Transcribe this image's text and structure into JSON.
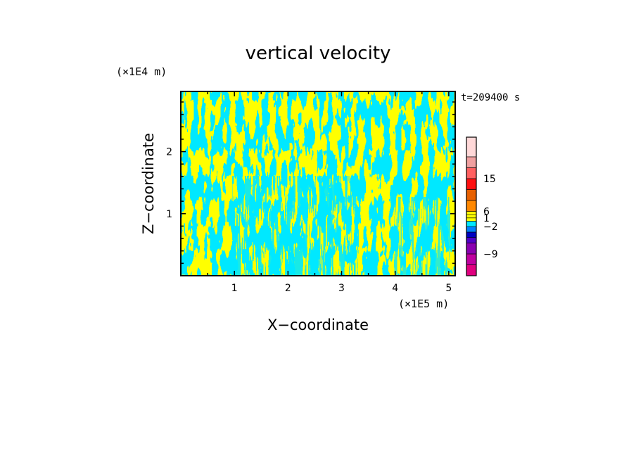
{
  "chart_data": {
    "type": "heatmap",
    "title": "vertical velocity",
    "xlabel": "X−coordinate",
    "ylabel": "Z−coordinate",
    "x_unit": "(×1E5 m)",
    "y_unit": "(×1E4 m)",
    "time_label": "t=209400 s",
    "xlim": [
      0,
      5.12
    ],
    "ylim": [
      0,
      2.97
    ],
    "x_ticks": [
      "1",
      "2",
      "3",
      "4",
      "5"
    ],
    "y_ticks": [
      "1",
      "2"
    ],
    "colorbar": {
      "tick_labels": [
        "15",
        "6",
        "1",
        "−2",
        "−9"
      ],
      "colors": [
        "#e0007f",
        "#c000a0",
        "#8a00b0",
        "#5000c8",
        "#0000c0",
        "#0080ff",
        "#00e8ff",
        "#ffff00",
        "#ffff00",
        "#ffff00",
        "#ff8800",
        "#e86000",
        "#ff1010",
        "#ff6060",
        "#f0a0a0",
        "#ffd8d8"
      ],
      "field_colors": {
        "positive": "#ffff00",
        "negative": "#00e8ff"
      }
    }
  }
}
